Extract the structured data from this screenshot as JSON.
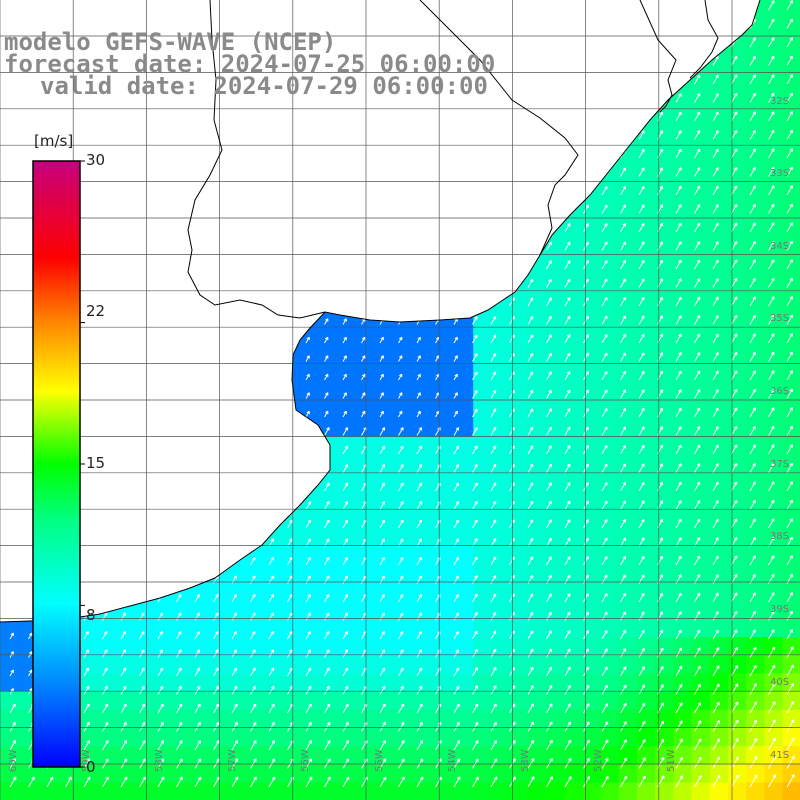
{
  "title": {
    "line1": "modelo GEFS-WAVE (NCEP)",
    "line2": "forecast date: 2024-07-25 06:00:00",
    "line3": "valid date: 2024-07-29 06:00:00"
  },
  "colorbar": {
    "unit": "[m/s]",
    "ticks": [
      {
        "value": 30,
        "label": "30"
      },
      {
        "value": 22,
        "label": "22"
      },
      {
        "value": 15,
        "label": "15"
      },
      {
        "value": 8,
        "label": "8"
      },
      {
        "value": 0,
        "label": "0"
      }
    ],
    "colors": [
      "#0000ff",
      "#007fff",
      "#00ffff",
      "#00ff00",
      "#ffff00",
      "#ff7f00",
      "#ff0000",
      "#c8007f"
    ]
  },
  "map": {
    "variable": "wind speed (m/s) with direction arrows",
    "lat_labels": [
      "32S",
      "33S",
      "34S",
      "35S",
      "36S",
      "37S",
      "38S",
      "39S",
      "40S",
      "41S"
    ],
    "lon_labels": [
      "60W",
      "59W",
      "58W",
      "57W",
      "56W",
      "55W",
      "54W",
      "53W",
      "52W",
      "51W"
    ],
    "land_color": "#ffffff",
    "coast_color": "#000000",
    "grid_color": "#555555"
  }
}
